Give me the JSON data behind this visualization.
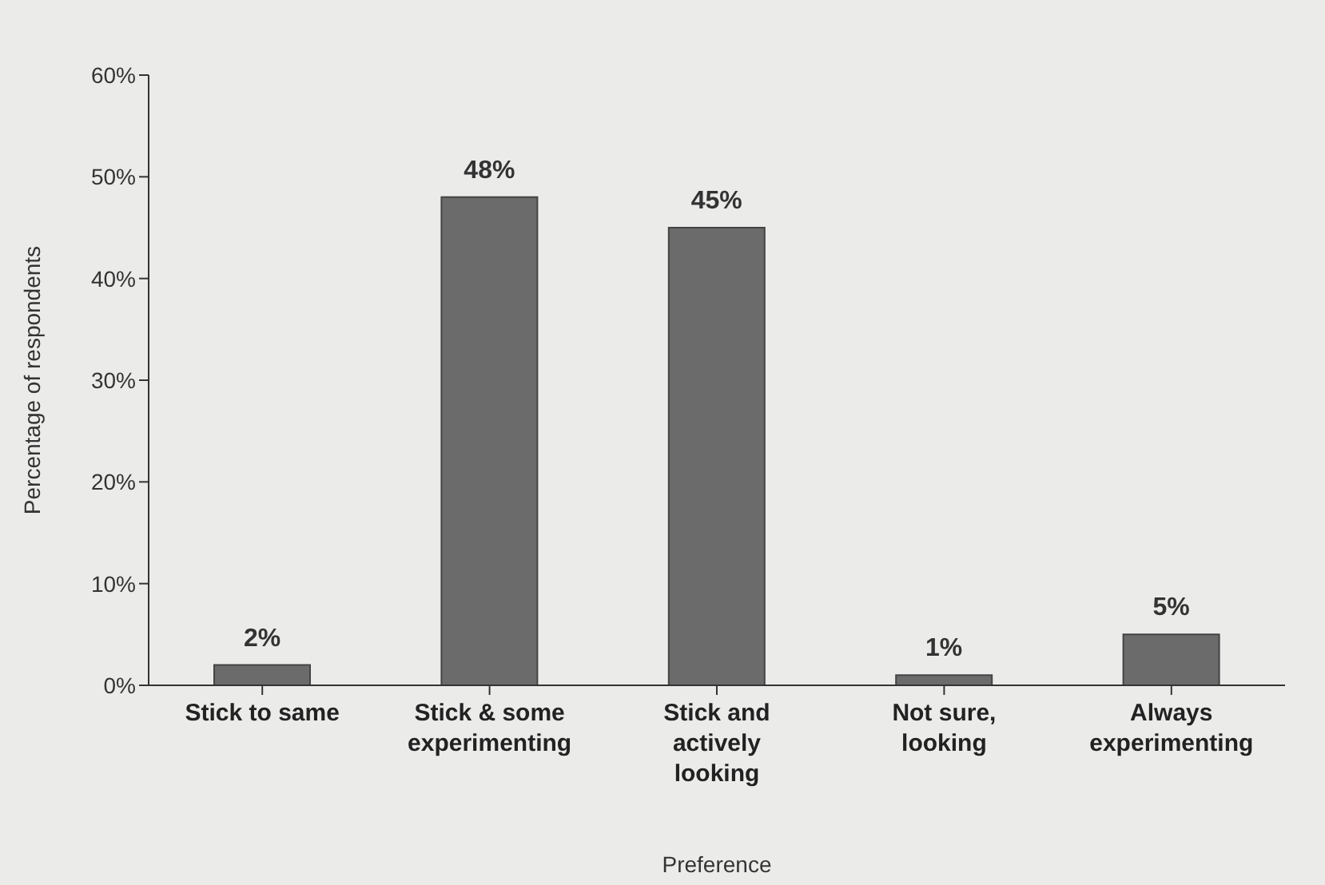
{
  "chart_data": {
    "type": "bar",
    "xlabel": "Preference",
    "ylabel": "Percentage of respondents",
    "categories": [
      "Stick to same",
      "Stick & some experimenting",
      "Stick and actively looking",
      "Not sure, looking",
      "Always experimenting"
    ],
    "values": [
      2,
      48,
      45,
      1,
      5
    ],
    "value_labels": [
      "2%",
      "48%",
      "45%",
      "1%",
      "5%"
    ],
    "color": "#6b6b6b",
    "ylim": [
      0,
      60
    ],
    "yticks": [
      {
        "value": 0,
        "label": "0%"
      },
      {
        "value": 10,
        "label": "10%"
      },
      {
        "value": 20,
        "label": "20%"
      },
      {
        "value": 30,
        "label": "30%"
      },
      {
        "value": 40,
        "label": "40%"
      },
      {
        "value": 50,
        "label": "50%"
      },
      {
        "value": 60,
        "label": "60%"
      }
    ],
    "grid": false,
    "legend": false
  }
}
